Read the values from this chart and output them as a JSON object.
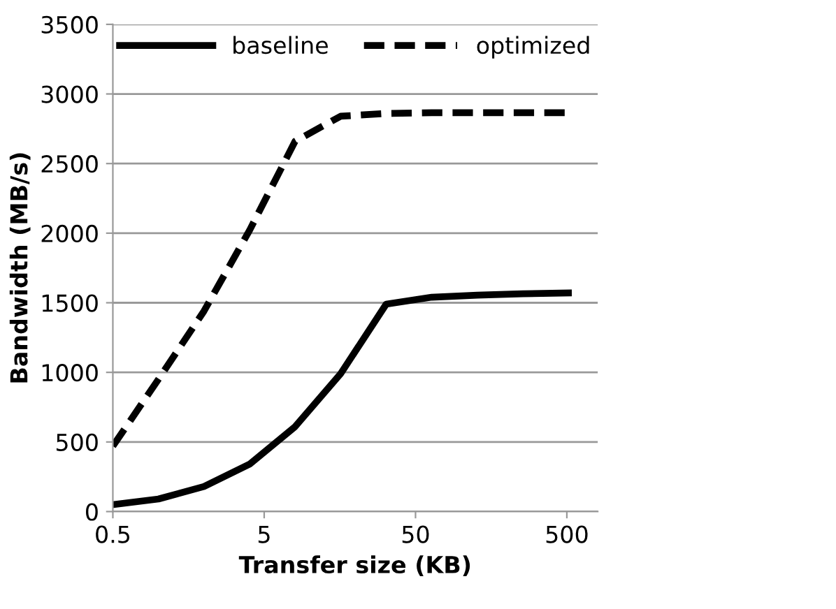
{
  "chart_data": {
    "type": "line",
    "xlabel": "Transfer size (KB)",
    "ylabel": "Bandwidth (MB/s)",
    "x": [
      0.5,
      1,
      2,
      4,
      8,
      16,
      32,
      64,
      128,
      256,
      512
    ],
    "series": [
      {
        "name": "baseline",
        "color": "#000000",
        "line_style": "solid",
        "values": [
          50,
          90,
          180,
          340,
          610,
          990,
          1490,
          1540,
          1555,
          1565,
          1570
        ]
      },
      {
        "name": "optimized",
        "color": "#000000",
        "line_style": "dashed",
        "values": [
          470,
          950,
          1440,
          2020,
          2660,
          2840,
          2860,
          2865,
          2865,
          2865,
          2865
        ]
      }
    ],
    "log": "x",
    "xlim": [
      0.5,
      800
    ],
    "xticks": [
      0.5,
      5,
      50,
      500
    ],
    "ylim": [
      0,
      3500
    ],
    "yticks": [
      0,
      500,
      1000,
      1500,
      2000,
      2500,
      3000,
      3500
    ],
    "grid": "y",
    "legend": "top",
    "marker": "none"
  }
}
